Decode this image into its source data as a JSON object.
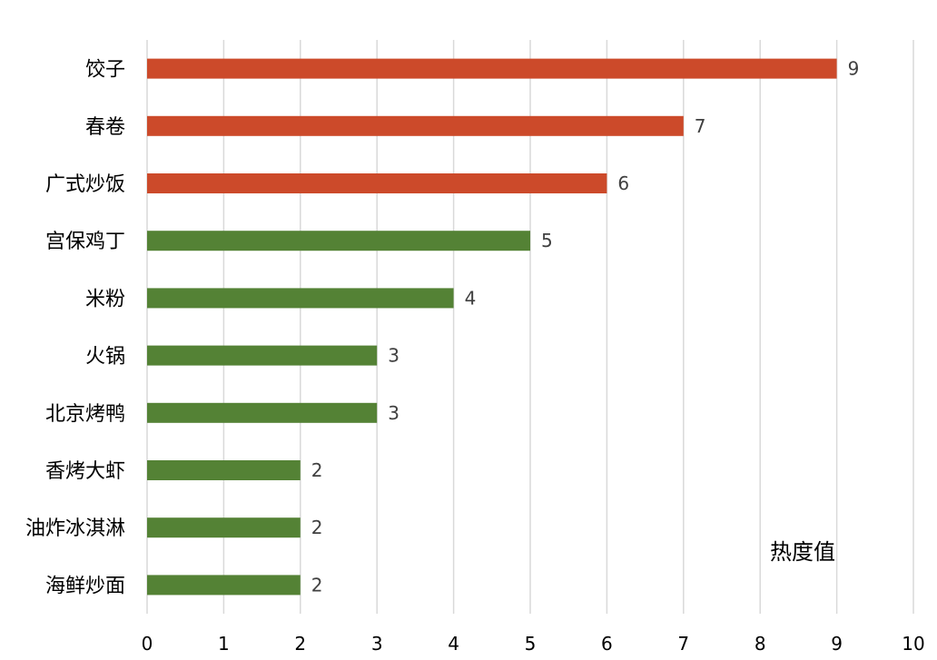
{
  "chart_data": {
    "type": "bar",
    "orientation": "horizontal",
    "categories": [
      "饺子",
      "春卷",
      "广式炒饭",
      "宫保鸡丁",
      "米粉",
      "火锅",
      "北京烤鸭",
      "香烤大虾",
      "油炸冰淇淋",
      "海鲜炒面"
    ],
    "values": [
      9,
      7,
      6,
      5,
      4,
      3,
      3,
      2,
      2,
      2
    ],
    "bar_colors": [
      "#cc4a2a",
      "#cc4a2a",
      "#cc4a2a",
      "#548235",
      "#548235",
      "#548235",
      "#548235",
      "#548235",
      "#548235",
      "#548235"
    ],
    "xlabel": "热度值",
    "xlim": [
      0,
      10
    ],
    "xticks": [
      0,
      1,
      2,
      3,
      4,
      5,
      6,
      7,
      8,
      9,
      10
    ],
    "grid": "vertical",
    "data_labels": true
  }
}
